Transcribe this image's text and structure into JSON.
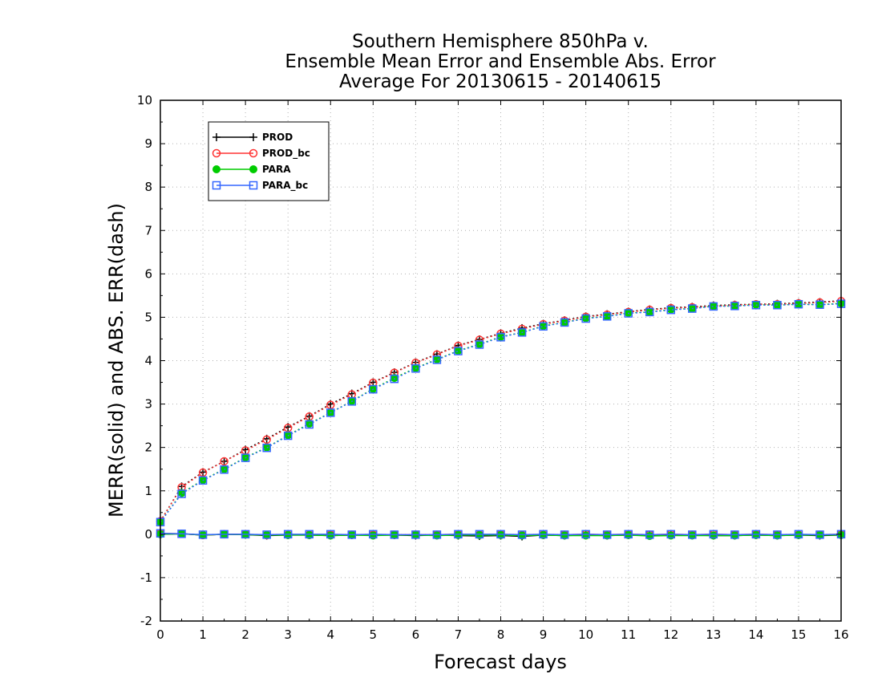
{
  "chart_data": {
    "type": "line",
    "title_lines": [
      "Southern Hemisphere 850hPa v.",
      "Ensemble Mean Error and Ensemble Abs. Error",
      "Average For 20130615 - 20140615"
    ],
    "xlabel": "Forecast days",
    "ylabel": "MERR(solid) and ABS. ERR(dash)",
    "xlim": [
      0,
      16
    ],
    "ylim": [
      -2,
      10
    ],
    "x_ticks": [
      "0",
      "1",
      "2",
      "3",
      "4",
      "5",
      "6",
      "7",
      "8",
      "9",
      "10",
      "11",
      "12",
      "13",
      "14",
      "15",
      "16"
    ],
    "y_ticks": [
      "-2",
      "-1",
      "0",
      "1",
      "2",
      "3",
      "4",
      "5",
      "6",
      "7",
      "8",
      "9",
      "10"
    ],
    "grid": true,
    "legend_position": "top-left",
    "x": [
      0,
      0.5,
      1,
      1.5,
      2,
      2.5,
      3,
      3.5,
      4,
      4.5,
      5,
      5.5,
      6,
      6.5,
      7,
      7.5,
      8,
      8.5,
      9,
      9.5,
      10,
      10.5,
      11,
      11.5,
      12,
      12.5,
      13,
      13.5,
      14,
      14.5,
      15,
      15.5,
      16
    ],
    "series": [
      {
        "name": "PROD",
        "color": "#000000",
        "marker": "plus",
        "merr": [
          0.0,
          0.01,
          -0.02,
          0.0,
          -0.01,
          -0.03,
          -0.02,
          -0.02,
          -0.03,
          -0.02,
          -0.02,
          -0.02,
          -0.03,
          -0.02,
          -0.03,
          -0.04,
          -0.03,
          -0.05,
          -0.02,
          -0.03,
          -0.02,
          -0.03,
          -0.02,
          -0.03,
          -0.02,
          -0.02,
          -0.03,
          -0.03,
          -0.02,
          -0.03,
          -0.02,
          -0.03,
          -0.02
        ],
        "abs_err": [
          0.3,
          1.1,
          1.43,
          1.68,
          1.95,
          2.2,
          2.47,
          2.72,
          3.0,
          3.24,
          3.5,
          3.73,
          3.96,
          4.15,
          4.35,
          4.49,
          4.63,
          4.75,
          4.85,
          4.93,
          5.02,
          5.07,
          5.13,
          5.18,
          5.22,
          5.24,
          5.27,
          5.29,
          5.3,
          5.31,
          5.33,
          5.35,
          5.38
        ]
      },
      {
        "name": "PROD_bc",
        "color": "#ff3333",
        "marker": "circle",
        "merr": [
          0.02,
          0.01,
          -0.02,
          0.0,
          0.0,
          -0.02,
          -0.01,
          -0.01,
          -0.01,
          -0.01,
          -0.01,
          -0.01,
          -0.01,
          -0.01,
          0.0,
          -0.01,
          0.0,
          -0.02,
          -0.01,
          -0.01,
          0.0,
          -0.01,
          0.0,
          -0.01,
          0.0,
          -0.01,
          0.0,
          -0.01,
          0.0,
          -0.01,
          -0.01,
          -0.01,
          0.0
        ],
        "abs_err": [
          0.3,
          1.08,
          1.42,
          1.68,
          1.93,
          2.18,
          2.45,
          2.71,
          2.98,
          3.22,
          3.49,
          3.72,
          3.95,
          4.14,
          4.34,
          4.48,
          4.62,
          4.73,
          4.84,
          4.92,
          5.01,
          5.06,
          5.12,
          5.17,
          5.21,
          5.23,
          5.26,
          5.28,
          5.3,
          5.3,
          5.32,
          5.34,
          5.37
        ]
      },
      {
        "name": "PARA",
        "color": "#00cc00",
        "marker": "filled-circle",
        "merr": [
          0.0,
          0.01,
          -0.02,
          0.0,
          -0.01,
          -0.02,
          -0.02,
          -0.02,
          -0.03,
          -0.02,
          -0.03,
          -0.02,
          -0.02,
          -0.03,
          -0.02,
          -0.02,
          -0.02,
          -0.03,
          -0.02,
          -0.03,
          -0.03,
          -0.03,
          -0.02,
          -0.04,
          -0.03,
          -0.03,
          -0.03,
          -0.03,
          -0.02,
          -0.03,
          -0.02,
          -0.02,
          -0.02
        ],
        "abs_err": [
          0.28,
          0.95,
          1.25,
          1.5,
          1.77,
          2.0,
          2.28,
          2.55,
          2.8,
          3.07,
          3.35,
          3.6,
          3.83,
          4.03,
          4.23,
          4.38,
          4.55,
          4.65,
          4.8,
          4.88,
          4.98,
          5.02,
          5.1,
          5.12,
          5.18,
          5.2,
          5.26,
          5.26,
          5.29,
          5.28,
          5.3,
          5.29,
          5.32
        ]
      },
      {
        "name": "PARA_bc",
        "color": "#3366ff",
        "marker": "square",
        "merr": [
          0.02,
          0.01,
          -0.01,
          0.0,
          0.0,
          -0.01,
          0.0,
          0.0,
          0.0,
          -0.01,
          0.0,
          -0.01,
          -0.01,
          -0.01,
          0.0,
          0.0,
          0.0,
          -0.01,
          0.0,
          -0.01,
          0.0,
          -0.01,
          0.0,
          -0.01,
          0.0,
          -0.01,
          0.0,
          -0.01,
          0.0,
          -0.01,
          0.0,
          -0.01,
          0.0
        ],
        "abs_err": [
          0.28,
          0.93,
          1.24,
          1.49,
          1.76,
          1.99,
          2.27,
          2.53,
          2.8,
          3.06,
          3.34,
          3.58,
          3.82,
          4.02,
          4.22,
          4.37,
          4.54,
          4.65,
          4.79,
          4.88,
          4.97,
          5.02,
          5.09,
          5.12,
          5.17,
          5.2,
          5.25,
          5.26,
          5.28,
          5.28,
          5.3,
          5.29,
          5.31
        ]
      }
    ]
  }
}
